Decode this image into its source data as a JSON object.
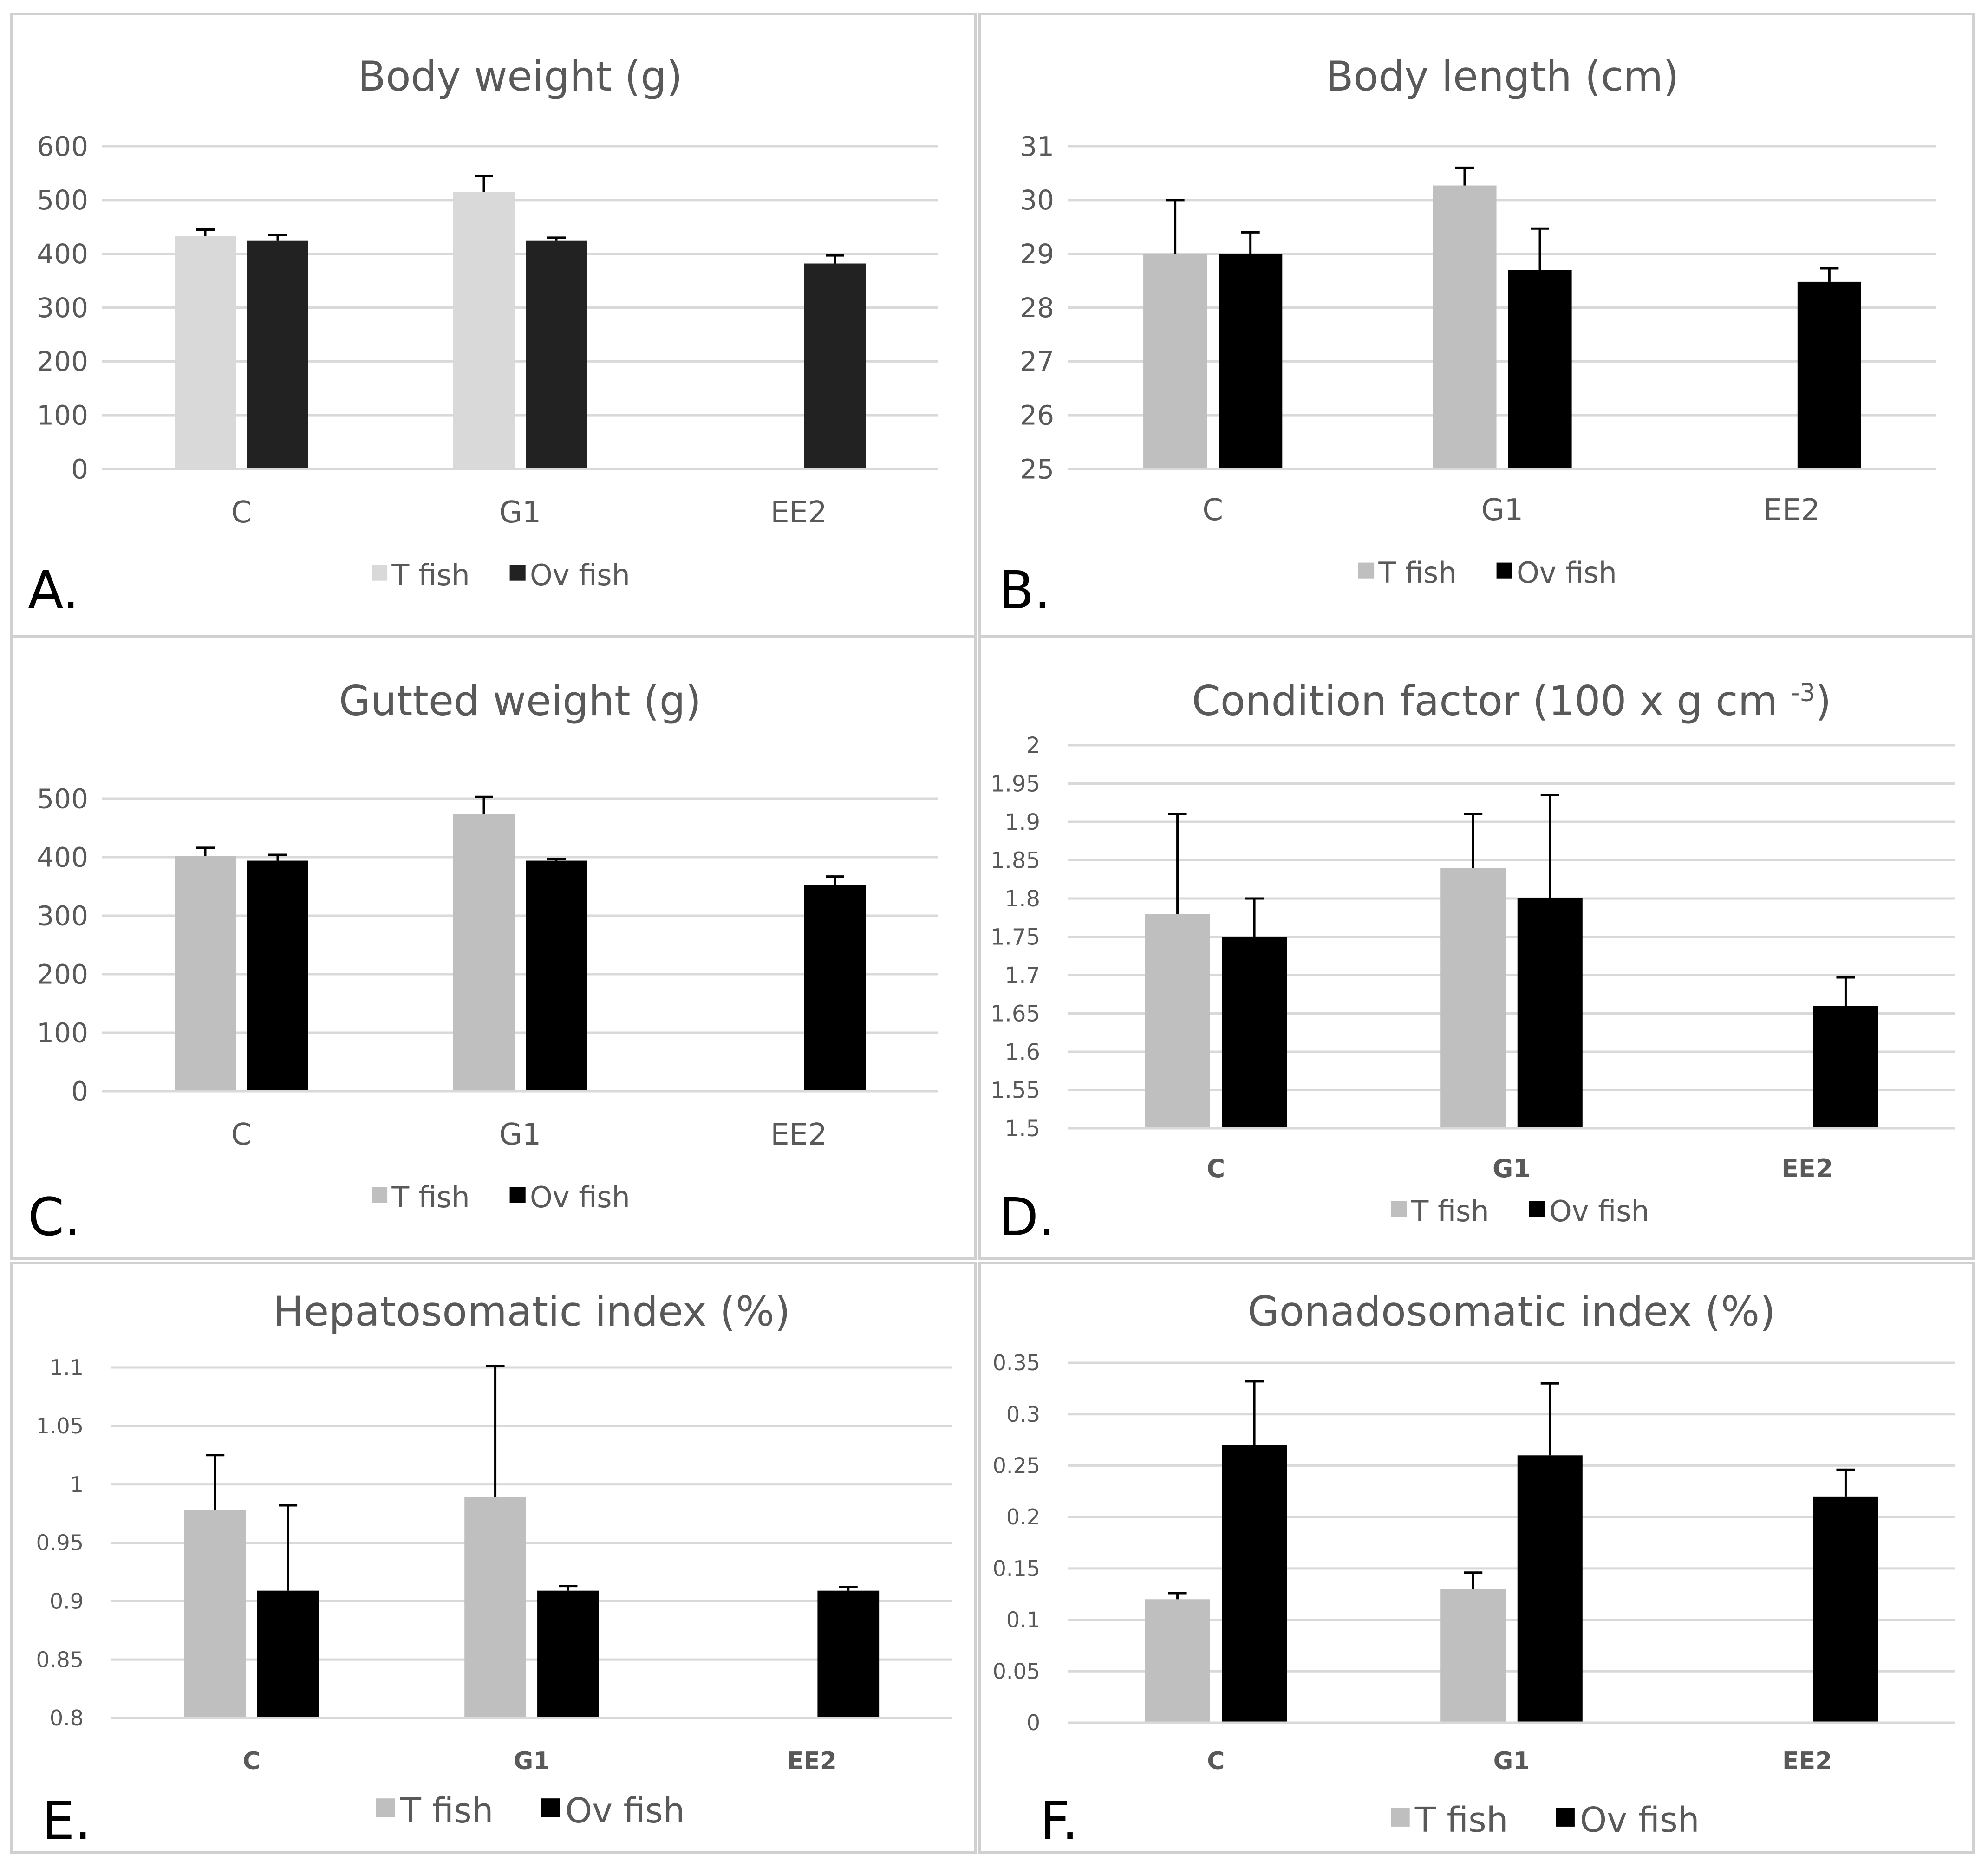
{
  "chart_data": [
    {
      "type": "bar",
      "panel_letter": "A.",
      "title": "Body weight (g)",
      "categories": [
        "C",
        "G1",
        "EE2"
      ],
      "ylim": [
        0,
        600
      ],
      "yticks": [
        "0",
        "100",
        "200",
        "300",
        "400",
        "500",
        "600"
      ],
      "ytick_values": [
        0,
        100,
        200,
        300,
        400,
        500,
        600
      ],
      "grid": true,
      "legend_position": "bottom",
      "series": [
        {
          "name": "T fish",
          "color": "#d9d9d9",
          "values": [
            433,
            515,
            null
          ],
          "errors": [
            12,
            30,
            null
          ]
        },
        {
          "name": "Ov fish",
          "color": "#222222",
          "values": [
            425,
            425,
            382
          ],
          "errors": [
            10,
            5,
            15
          ]
        }
      ]
    },
    {
      "type": "bar",
      "panel_letter": "B.",
      "title": "Body length (cm)",
      "categories": [
        "C",
        "G1",
        "EE2"
      ],
      "ylim": [
        25,
        31
      ],
      "yticks": [
        "25",
        "26",
        "27",
        "28",
        "29",
        "30",
        "31"
      ],
      "ytick_values": [
        25,
        26,
        27,
        28,
        29,
        30,
        31
      ],
      "grid": true,
      "legend_position": "bottom",
      "series": [
        {
          "name": "T fish",
          "color": "#bfbfbf",
          "values": [
            29.0,
            30.27,
            null
          ],
          "errors": [
            1.0,
            0.33,
            null
          ]
        },
        {
          "name": "Ov fish",
          "color": "#000000",
          "values": [
            29.0,
            28.7,
            28.48
          ],
          "errors": [
            0.4,
            0.77,
            0.25
          ]
        }
      ]
    },
    {
      "type": "bar",
      "panel_letter": "C.",
      "title": "Gutted weight (g)",
      "categories": [
        "C",
        "G1",
        "EE2"
      ],
      "ylim": [
        0,
        500
      ],
      "yticks": [
        "0",
        "100",
        "200",
        "300",
        "400",
        "500"
      ],
      "ytick_values": [
        0,
        100,
        200,
        300,
        400,
        500
      ],
      "grid": true,
      "legend_position": "bottom",
      "series": [
        {
          "name": "T fish",
          "color": "#bfbfbf",
          "values": [
            402,
            473,
            null
          ],
          "errors": [
            14,
            30,
            null
          ]
        },
        {
          "name": "Ov fish",
          "color": "#000000",
          "values": [
            394,
            394,
            353
          ],
          "errors": [
            10,
            3,
            14
          ]
        }
      ]
    },
    {
      "type": "bar",
      "panel_letter": "D.",
      "title": "Condition factor (100 x g cm ",
      "title_superscript": "-3",
      "title_suffix": ")",
      "categories": [
        "C",
        "G1",
        "EE2"
      ],
      "ylim": [
        1.5,
        2.0
      ],
      "yticks": [
        "1.5",
        "1.55",
        "1.6",
        "1.65",
        "1.7",
        "1.75",
        "1.8",
        "1.85",
        "1.9",
        "1.95",
        "2"
      ],
      "ytick_values": [
        1.5,
        1.55,
        1.6,
        1.65,
        1.7,
        1.75,
        1.8,
        1.85,
        1.9,
        1.95,
        2.0
      ],
      "grid": true,
      "legend_position": "bottom",
      "series": [
        {
          "name": "T fish",
          "color": "#bfbfbf",
          "values": [
            1.78,
            1.84,
            null
          ],
          "errors": [
            0.13,
            0.07,
            null
          ]
        },
        {
          "name": "Ov fish",
          "color": "#000000",
          "values": [
            1.75,
            1.8,
            1.66
          ],
          "errors": [
            0.05,
            0.135,
            0.037
          ]
        }
      ]
    },
    {
      "type": "bar",
      "panel_letter": "E.",
      "title": "Hepatosomatic index (%)",
      "categories": [
        "C",
        "G1",
        "EE2"
      ],
      "ylim": [
        0.8,
        1.1
      ],
      "yticks": [
        "0.8",
        "0.85",
        "0.9",
        "0.95",
        "1",
        "1.05",
        "1.1"
      ],
      "ytick_values": [
        0.8,
        0.85,
        0.9,
        0.95,
        1.0,
        1.05,
        1.1
      ],
      "grid": true,
      "legend_position": "bottom",
      "series": [
        {
          "name": "T fish",
          "color": "#bfbfbf",
          "values": [
            0.978,
            0.989,
            null
          ],
          "errors": [
            0.047,
            0.112,
            null
          ]
        },
        {
          "name": "Ov fish",
          "color": "#000000",
          "values": [
            0.909,
            0.909,
            0.909
          ],
          "errors": [
            0.073,
            0.004,
            0.003
          ]
        }
      ]
    },
    {
      "type": "bar",
      "panel_letter": "F.",
      "title": "Gonadosomatic index (%)",
      "categories": [
        "C",
        "G1",
        "EE2"
      ],
      "ylim": [
        0,
        0.35
      ],
      "yticks": [
        "0",
        "0.05",
        "0.1",
        "0.15",
        "0.2",
        "0.25",
        "0.3",
        "0.35"
      ],
      "ytick_values": [
        0,
        0.05,
        0.1,
        0.15,
        0.2,
        0.25,
        0.3,
        0.35
      ],
      "grid": true,
      "legend_position": "bottom",
      "series": [
        {
          "name": "T fish",
          "color": "#bfbfbf",
          "values": [
            0.12,
            0.13,
            null
          ],
          "errors": [
            0.006,
            0.016,
            null
          ]
        },
        {
          "name": "Ov fish",
          "color": "#000000",
          "values": [
            0.27,
            0.26,
            0.22
          ],
          "errors": [
            0.062,
            0.07,
            0.026
          ]
        }
      ]
    }
  ]
}
